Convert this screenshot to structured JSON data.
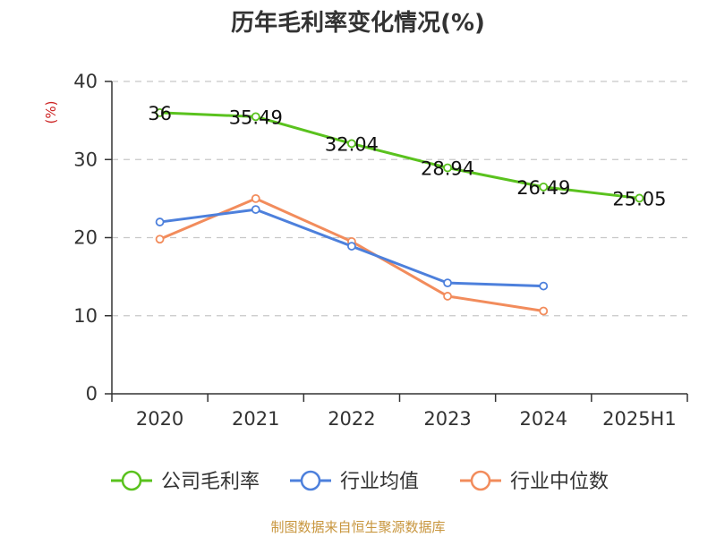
{
  "chart_data": {
    "type": "line",
    "title": "历年毛利率变化情况(%)",
    "ylabel": "(%)",
    "categories": [
      "2020",
      "2021",
      "2022",
      "2023",
      "2024",
      "2025H1"
    ],
    "ylim": [
      0,
      40
    ],
    "yticks": [
      0,
      10,
      20,
      30,
      40
    ],
    "grid": true,
    "legend_position": "bottom",
    "series": [
      {
        "name": "公司毛利率",
        "color": "#5ac21e",
        "values": [
          36,
          35.49,
          32.04,
          28.94,
          26.49,
          25.05
        ],
        "labels": [
          "36",
          "35.49",
          "32.04",
          "28.94",
          "26.49",
          "25.05"
        ]
      },
      {
        "name": "行业均值",
        "color": "#4d80dc",
        "values": [
          22.0,
          23.6,
          18.9,
          14.2,
          13.8,
          null
        ]
      },
      {
        "name": "行业中位数",
        "color": "#f28c5c",
        "values": [
          19.8,
          25.0,
          19.5,
          12.5,
          10.6,
          null
        ]
      }
    ]
  },
  "footer": {
    "source": "制图数据来自恒生聚源数据库",
    "color": "#c8963e"
  },
  "ylabel_color": "#cc2222"
}
